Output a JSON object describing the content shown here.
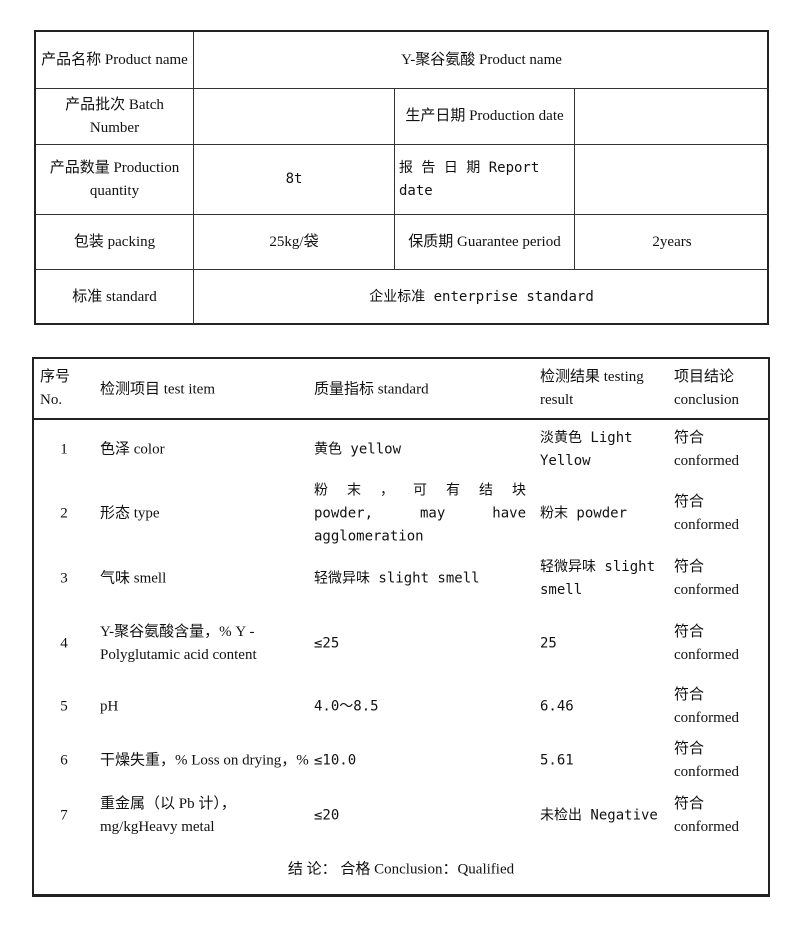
{
  "info_table": {
    "product_name_label": "产品名称 Product name",
    "product_name_value": "Υ-聚谷氨酸 Product name",
    "batch_label": "产品批次 Batch Number",
    "batch_value": "",
    "production_date_label": "生产日期 Production date",
    "production_date_value": "",
    "quantity_label": "产品数量 Production quantity",
    "quantity_value": "8t",
    "report_date_label": "报 告 日 期 Report date",
    "report_date_value": "",
    "packing_label": "包装 packing",
    "packing_value": "25kg/袋",
    "guarantee_label": "保质期 Guarantee period",
    "guarantee_value": "2years",
    "standard_label": "标准 standard",
    "standard_value": "企业标准 enterprise standard"
  },
  "test_table": {
    "headers": {
      "no": "序号 No.",
      "item": "检测项目  test item",
      "standard": "质量指标 standard",
      "result": "检测结果 testing result",
      "conclusion": "项目结论 conclusion"
    },
    "rows": [
      {
        "no": "1",
        "item": "色泽 color",
        "standard": "黄色 yellow",
        "result": "淡黄色 Light Yellow",
        "conclusion": "符合 conformed"
      },
      {
        "no": "2",
        "item": "形态 type",
        "standard": "粉 末 ， 可 有 结 块 powder, may have agglomeration",
        "result": "粉末 powder",
        "conclusion": "符合 conformed"
      },
      {
        "no": "3",
        "item": "气味 smell",
        "standard": "轻微异味 slight smell",
        "result": "轻微异味 slight smell",
        "conclusion": "符合 conformed"
      },
      {
        "no": "4",
        "item": "Υ-聚谷氨酸含量，% Υ - Polyglutamic acid content",
        "standard": "≤25",
        "result": "25",
        "conclusion": "符合 conformed"
      },
      {
        "no": "5",
        "item": "pH",
        "standard": "4.0～8.5",
        "result": "6.46",
        "conclusion": "符合 conformed"
      },
      {
        "no": "6",
        "item": "干燥失重，% Loss on drying，%",
        "standard": "≤10.0",
        "result": "5.61",
        "conclusion": "符合 conformed"
      },
      {
        "no": "7",
        "item": "重金属（以 Pb 计）， mg/kgHeavy metal",
        "standard": "≤20",
        "result": "未检出 Negative",
        "conclusion": "符合 conformed"
      }
    ],
    "final_conclusion": "结 论：  合格   Conclusion：Qualified"
  }
}
